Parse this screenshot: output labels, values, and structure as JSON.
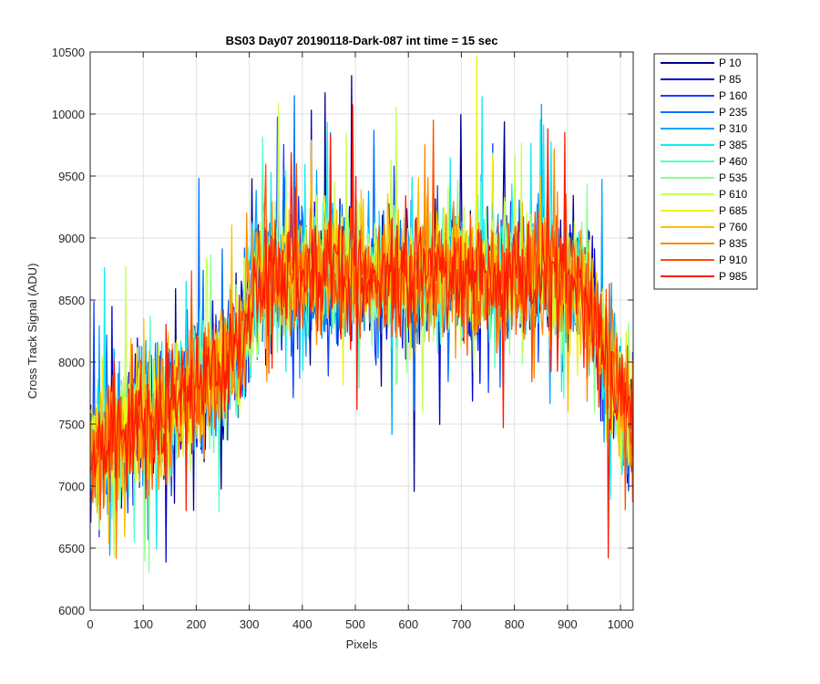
{
  "chart_data": {
    "type": "line",
    "title": "BS03 Day07 20190118-Dark-087 int time = 15 sec",
    "xlabel": "Pixels",
    "ylabel": "Cross Track Signal (ADU)",
    "xlim": [
      0,
      1024
    ],
    "ylim": [
      6000,
      10500
    ],
    "x_ticks": [
      0,
      100,
      200,
      300,
      400,
      500,
      600,
      700,
      800,
      900,
      1000
    ],
    "y_ticks": [
      6000,
      6500,
      7000,
      7500,
      8000,
      8500,
      9000,
      9500,
      10000,
      10500
    ],
    "grid": true,
    "legend_position": "outside-top-right",
    "x": [
      0,
      50,
      100,
      150,
      200,
      250,
      290,
      310,
      350,
      400,
      450,
      500,
      550,
      600,
      650,
      700,
      750,
      800,
      850,
      900,
      940,
      960,
      980,
      1000,
      1024
    ],
    "envelope": {
      "mean": [
        7250,
        7400,
        7550,
        7600,
        7800,
        7950,
        8150,
        8650,
        8700,
        8700,
        8750,
        8750,
        8700,
        8700,
        8700,
        8700,
        8700,
        8700,
        8700,
        8650,
        8550,
        8150,
        7900,
        7700,
        7500
      ],
      "approx_spread": 450
    },
    "series": [
      {
        "name": "P 10",
        "color": "#00008f"
      },
      {
        "name": "P 85",
        "color": "#0000d6"
      },
      {
        "name": "P 160",
        "color": "#0f3fff"
      },
      {
        "name": "P 235",
        "color": "#0070ff"
      },
      {
        "name": "P 310",
        "color": "#00a6ff"
      },
      {
        "name": "P 385",
        "color": "#12ecf0"
      },
      {
        "name": "P 460",
        "color": "#55ffc7"
      },
      {
        "name": "P 535",
        "color": "#8cff8f"
      },
      {
        "name": "P 610",
        "color": "#c7ff55"
      },
      {
        "name": "P 685",
        "color": "#f0f40f"
      },
      {
        "name": "P 760",
        "color": "#ffbf00"
      },
      {
        "name": "P 835",
        "color": "#ff8a00"
      },
      {
        "name": "P 910",
        "color": "#ff4f00"
      },
      {
        "name": "P 985",
        "color": "#ff1a00"
      }
    ]
  }
}
